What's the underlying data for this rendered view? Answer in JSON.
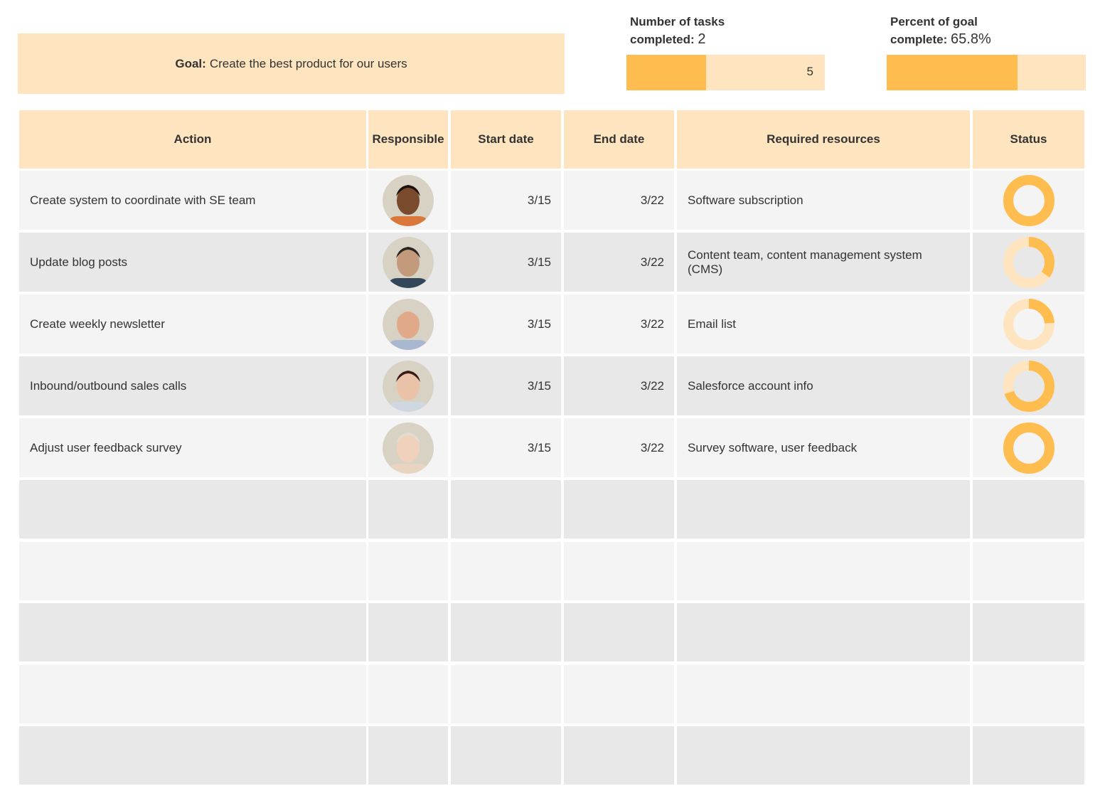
{
  "goal": {
    "label": "Goal:",
    "text": "Create the best product for our users"
  },
  "tasks_completed": {
    "label_line1": "Number of tasks",
    "label_line2": "completed:",
    "value": "2",
    "total": "5",
    "fraction": 0.4
  },
  "percent_goal": {
    "label_line1": "Percent of goal",
    "label_line2": "complete:",
    "value": "65.8%",
    "fraction": 0.658
  },
  "colors": {
    "accent": "#ffbd50",
    "accent_light": "#fee5bf",
    "row_light": "#f4f4f4",
    "row_dark": "#e8e8e8"
  },
  "table": {
    "headers": [
      "Action",
      "Responsible",
      "Start date",
      "End date",
      "Required resources",
      "Status"
    ],
    "rows": [
      {
        "action": "Create system to coordinate with SE team",
        "avatar": "avatar-man-dark-skin",
        "start": "3/15",
        "end": "3/22",
        "resources": "Software subscription",
        "status": 1.0
      },
      {
        "action": "Update blog posts",
        "avatar": "avatar-man-glasses-beard",
        "start": "3/15",
        "end": "3/22",
        "resources": "Content team, content management system (CMS)",
        "status": 0.35
      },
      {
        "action": "Create weekly newsletter",
        "avatar": "avatar-older-man",
        "start": "3/15",
        "end": "3/22",
        "resources": "Email list",
        "status": 0.24
      },
      {
        "action": "Inbound/outbound sales calls",
        "avatar": "avatar-woman-glasses",
        "start": "3/15",
        "end": "3/22",
        "resources": "Salesforce account info",
        "status": 0.7
      },
      {
        "action": "Adjust user feedback survey",
        "avatar": "avatar-woman-blonde",
        "start": "3/15",
        "end": "3/22",
        "resources": "Survey software, user feedback",
        "status": 1.0
      }
    ],
    "empty_rows": 5
  }
}
